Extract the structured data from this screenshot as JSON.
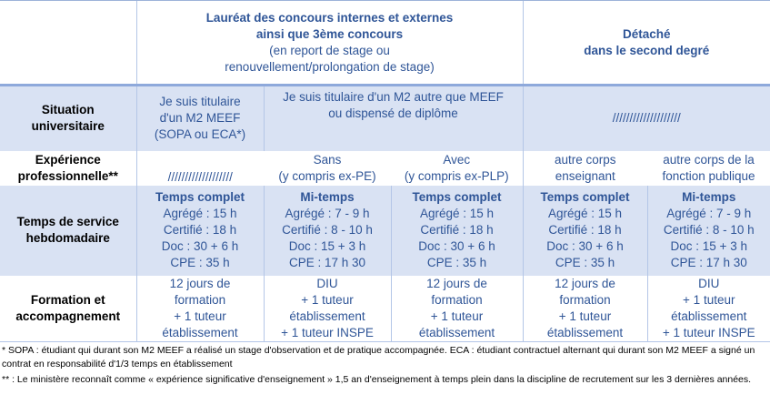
{
  "header": {
    "laureat": [
      "Lauréat des concours internes et externes",
      "ainsi que 3ème concours"
    ],
    "laureat_sub": [
      "(en report de stage ou",
      "renouvellement/prolongation de stage)"
    ],
    "detache": [
      "Détaché",
      "dans le second degré"
    ]
  },
  "rows": {
    "situation": {
      "label": [
        "Situation",
        "universitaire"
      ],
      "c1": [
        "Je suis titulaire",
        "d'un M2 MEEF",
        "(SOPA ou ECA*)"
      ],
      "c2": [
        "Je suis titulaire d'un M2 autre que MEEF",
        "ou dispensé de diplôme"
      ],
      "c3": "////////////////////"
    },
    "experience": {
      "label": [
        "Expérience",
        "professionnelle**"
      ],
      "c1": "///////////////////",
      "c2": [
        "Sans",
        "(y compris ex-PE)"
      ],
      "c3": [
        "Avec",
        "(y compris ex-PLP)"
      ],
      "c4": [
        "autre corps",
        "enseignant"
      ],
      "c5": [
        "autre corps de la",
        "fonction publique"
      ]
    },
    "temps": {
      "label": [
        "Temps de service",
        "hebdomadaire"
      ],
      "cells": [
        [
          "Temps complet",
          "Agrégé : 15 h",
          "Certifié : 18 h",
          "Doc : 30 + 6 h",
          "CPE : 35 h"
        ],
        [
          "Mi-temps",
          "Agrégé : 7 - 9 h",
          "Certifié : 8 - 10 h",
          "Doc : 15 + 3 h",
          "CPE : 17 h 30"
        ],
        [
          "Temps complet",
          "Agrégé : 15 h",
          "Certifié : 18 h",
          "Doc : 30 + 6 h",
          "CPE : 35 h"
        ],
        [
          "Temps complet",
          "Agrégé : 15 h",
          "Certifié : 18 h",
          "Doc : 30 + 6 h",
          "CPE : 35 h"
        ],
        [
          "Mi-temps",
          "Agrégé : 7 - 9 h",
          "Certifié : 8 - 10 h",
          "Doc : 15 + 3 h",
          "CPE : 17 h 30"
        ]
      ]
    },
    "formation": {
      "label": [
        "Formation et",
        "accompagnement"
      ],
      "cells": [
        [
          "12 jours de",
          "formation",
          "+ 1 tuteur",
          "établissement"
        ],
        [
          "DIU",
          "+ 1 tuteur",
          "établissement",
          "+ 1 tuteur INSPE"
        ],
        [
          "12 jours de",
          "formation",
          "+ 1 tuteur",
          "établissement"
        ],
        [
          "12 jours de",
          "formation",
          "+ 1 tuteur",
          "établissement"
        ],
        [
          "DIU",
          "+ 1 tuteur",
          "établissement",
          "+ 1 tuteur INSPE"
        ]
      ]
    }
  },
  "footnotes": [
    "* SOPA : étudiant qui durant son M2 MEEF a réalisé un stage d'observation et de pratique accompagnée. ECA : étudiant contractuel alternant qui durant son M2 MEEF a signé un contrat en responsabilité d'1/3 temps en établissement",
    "** : Le ministère reconnaît comme « expérience significative d'enseignement » 1,5 an d'enseignement à temps plein dans la discipline de recrutement sur les 3 dernières années."
  ]
}
